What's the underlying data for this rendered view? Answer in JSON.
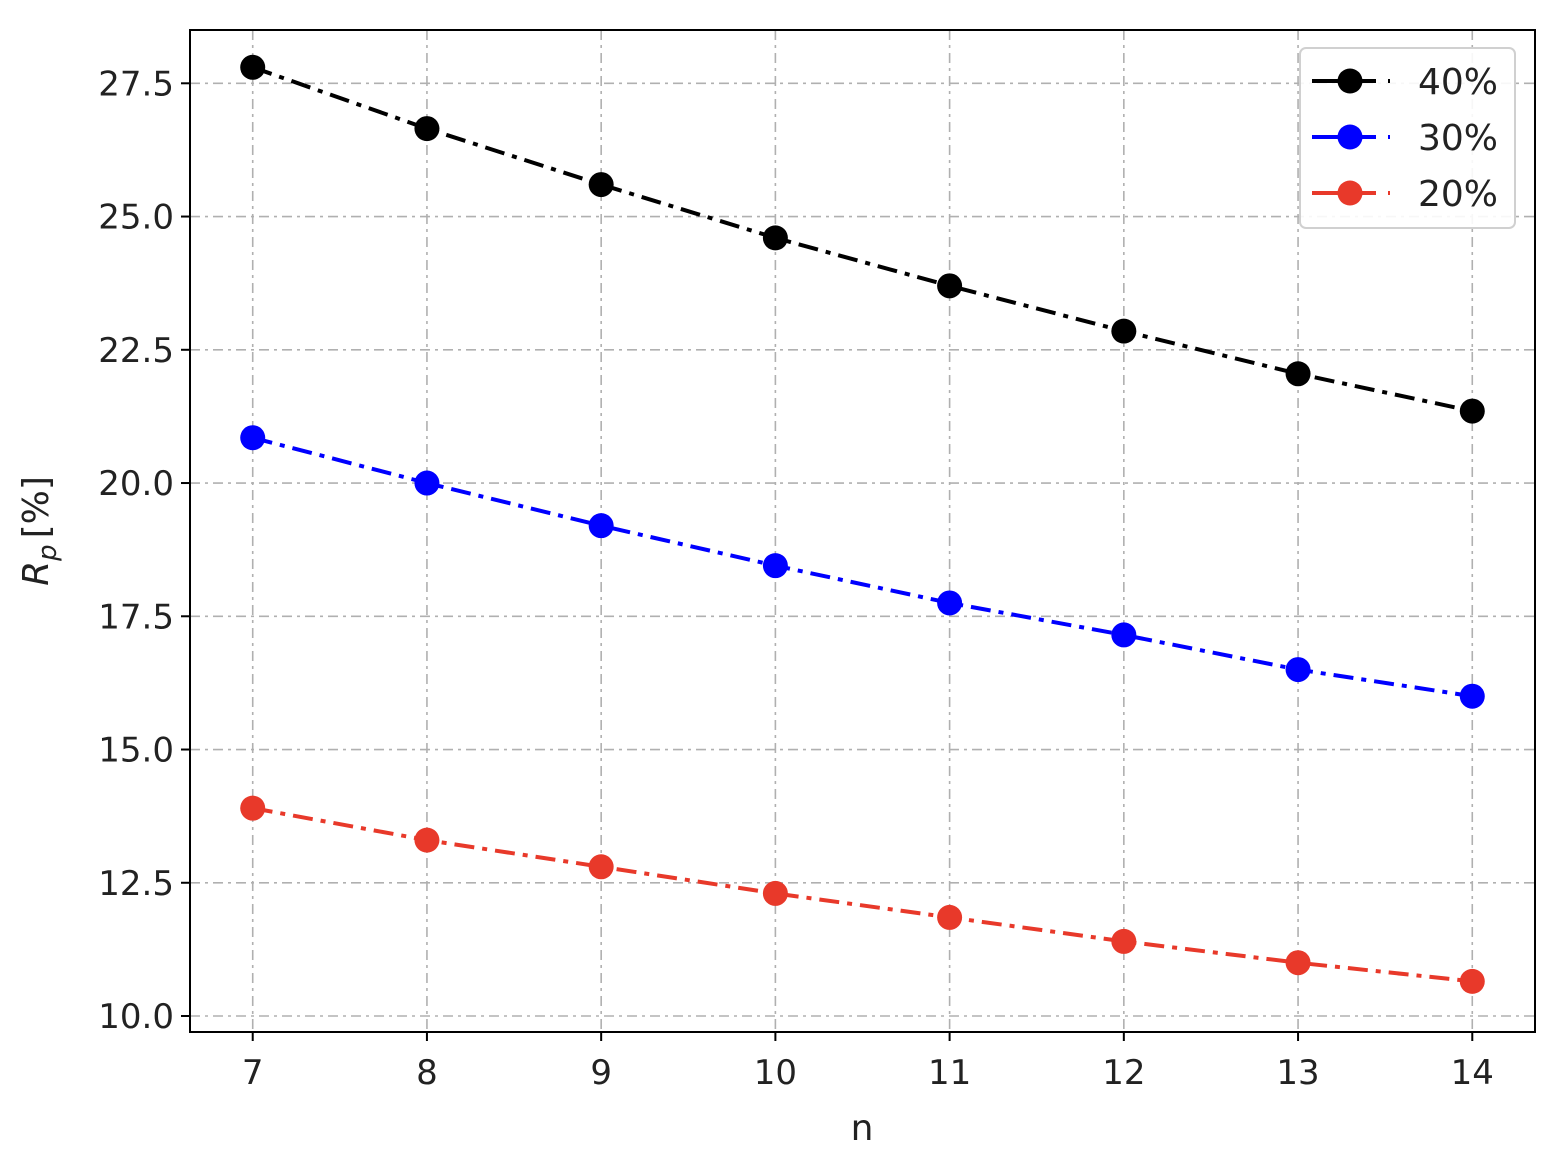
{
  "chart_data": {
    "type": "line",
    "xlabel": "n",
    "ylabel_main": "R",
    "ylabel_sub": "p",
    "ylabel_unit": "[%]",
    "x": [
      7,
      8,
      9,
      10,
      11,
      12,
      13,
      14
    ],
    "xticks": [
      "7",
      "8",
      "9",
      "10",
      "11",
      "12",
      "13",
      "14"
    ],
    "yticks": [
      "10.0",
      "12.5",
      "15.0",
      "17.5",
      "20.0",
      "22.5",
      "25.0",
      "27.5"
    ],
    "ytick_values": [
      10.0,
      12.5,
      15.0,
      17.5,
      20.0,
      22.5,
      25.0,
      27.5
    ],
    "xlim": [
      6.64,
      14.36
    ],
    "ylim": [
      9.7,
      28.5
    ],
    "grid": true,
    "legend_position": "top-right",
    "series": [
      {
        "name": "40%",
        "color": "#000000",
        "values": [
          27.8,
          26.65,
          25.6,
          24.6,
          23.7,
          22.85,
          22.05,
          21.35
        ]
      },
      {
        "name": "30%",
        "color": "#0000ff",
        "values": [
          20.85,
          20.0,
          19.2,
          18.45,
          17.75,
          17.15,
          16.5,
          16.0
        ]
      },
      {
        "name": "20%",
        "color": "#e8392a",
        "values": [
          13.9,
          13.3,
          12.8,
          12.3,
          11.85,
          11.4,
          11.0,
          10.65
        ]
      }
    ]
  }
}
